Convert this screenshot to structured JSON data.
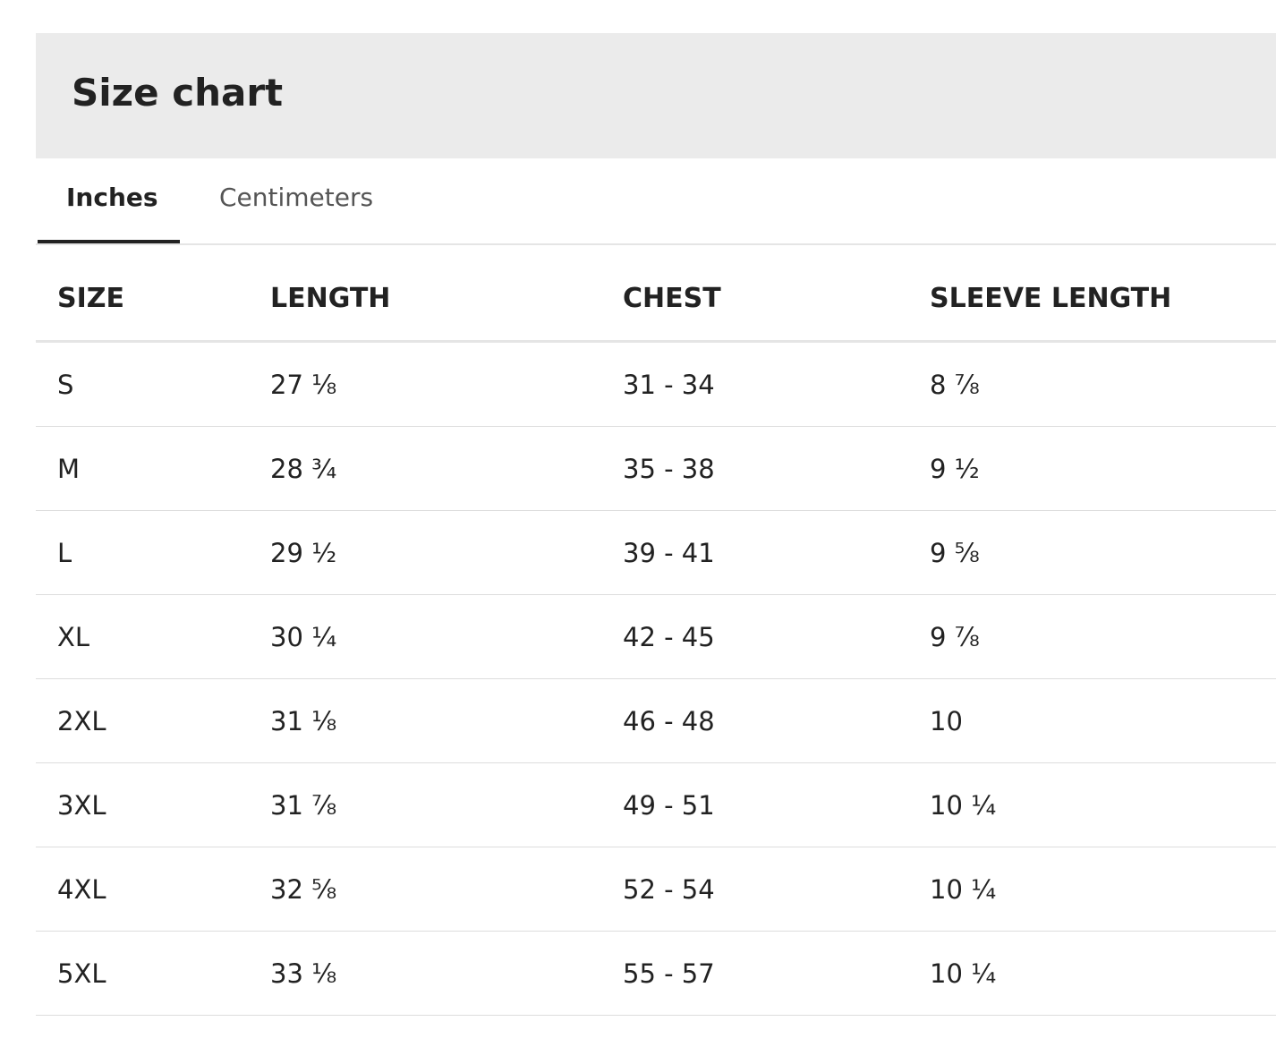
{
  "header": {
    "title": "Size chart"
  },
  "tabs": [
    "Inches",
    "Centimeters"
  ],
  "table": {
    "columns": [
      "SIZE",
      "LENGTH",
      "CHEST",
      "SLEEVE LENGTH"
    ],
    "rows": [
      [
        "S",
        "27 ⅛",
        "31 - 34",
        "8 ⅞"
      ],
      [
        "M",
        "28 ¾",
        "35 - 38",
        "9 ½"
      ],
      [
        "L",
        "29 ½",
        "39 - 41",
        "9 ⅝"
      ],
      [
        "XL",
        "30 ¼",
        "42 - 45",
        "9 ⅞"
      ],
      [
        "2XL",
        "31 ⅛",
        "46 - 48",
        "10"
      ],
      [
        "3XL",
        "31 ⅞",
        "49 - 51",
        "10 ¼"
      ],
      [
        "4XL",
        "32 ⅝",
        "52 - 54",
        "10 ¼"
      ],
      [
        "5XL",
        "33 ⅛",
        "55 - 57",
        "10 ¼"
      ]
    ]
  }
}
